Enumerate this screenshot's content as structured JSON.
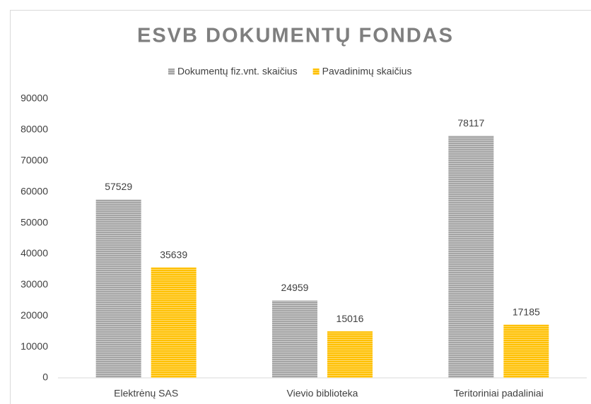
{
  "chart_data": {
    "type": "bar",
    "title": "ESVB DOKUMENTŲ FONDAS",
    "categories": [
      "Elektrėnų SAS",
      "Vievio biblioteka",
      "Teritoriniai padaliniai"
    ],
    "series": [
      {
        "name": "Dokumentų fiz.vnt. skaičius",
        "color": "#a5a5a5",
        "values": [
          57529,
          24959,
          78117
        ]
      },
      {
        "name": "Pavadinimų skaičius",
        "color": "#ffc000",
        "values": [
          35639,
          15016,
          17185
        ]
      }
    ],
    "ylim": [
      0,
      90000
    ],
    "yticks": [
      0,
      10000,
      20000,
      30000,
      40000,
      50000,
      60000,
      70000,
      80000,
      90000
    ],
    "grid": false,
    "legend": "top"
  }
}
